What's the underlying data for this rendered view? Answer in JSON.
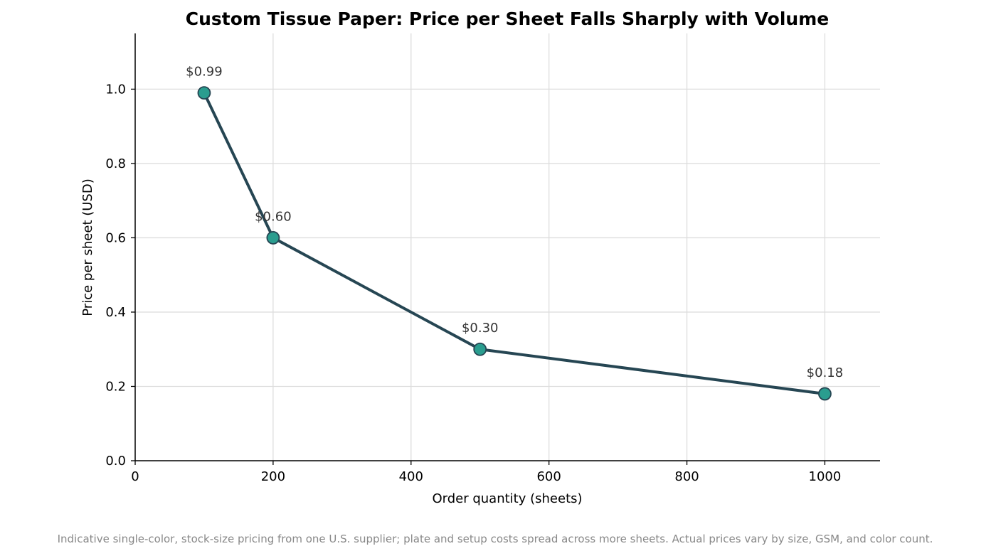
{
  "chart_data": {
    "type": "line",
    "title": "Custom Tissue Paper: Price per Sheet Falls Sharply with Volume",
    "xlabel": "Order quantity (sheets)",
    "ylabel": "Price per sheet (USD)",
    "x": [
      100,
      200,
      500,
      1000
    ],
    "series": [
      {
        "values": [
          0.99,
          0.6,
          0.3,
          0.18
        ],
        "labels": [
          "$0.99",
          "$0.60",
          "$0.30",
          "$0.18"
        ]
      }
    ],
    "xlim": [
      0,
      1080
    ],
    "ylim": [
      0,
      1.15
    ],
    "xticks": [
      0,
      200,
      400,
      600,
      800,
      1000
    ],
    "xtick_labels": [
      "0",
      "200",
      "400",
      "600",
      "800",
      "1000"
    ],
    "yticks": [
      0.0,
      0.2,
      0.4,
      0.6,
      0.8,
      1.0
    ],
    "ytick_labels": [
      "0.0",
      "0.2",
      "0.4",
      "0.6",
      "0.8",
      "1.0"
    ],
    "grid": true,
    "footnote": "Indicative single-color, stock-size pricing from one U.S. supplier; plate and setup costs spread across more sheets. Actual prices vary by size, GSM, and color count.",
    "colors": {
      "line": "#264653",
      "marker_fill": "#2a9d8f",
      "marker_edge": "#264653",
      "grid": "#dddddd",
      "axis": "#000000"
    }
  }
}
